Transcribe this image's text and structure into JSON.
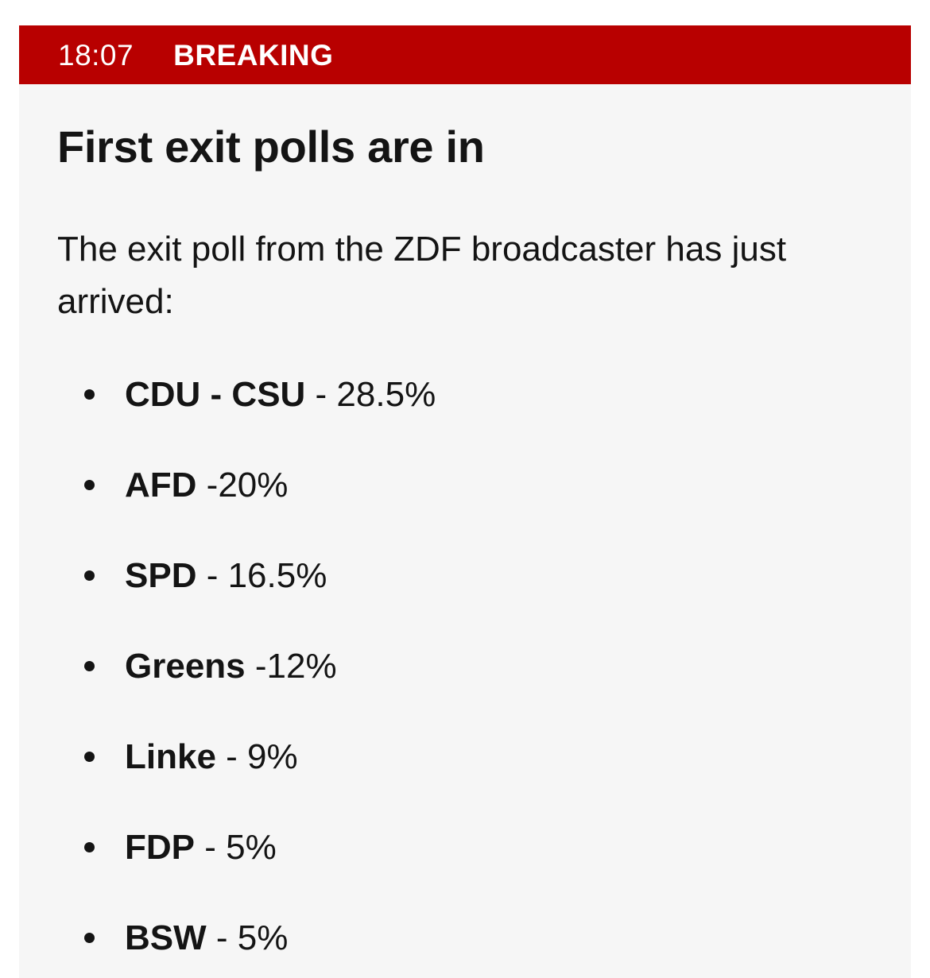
{
  "banner": {
    "time": "18:07",
    "label": "BREAKING",
    "color": "#b80000"
  },
  "post": {
    "headline": "First exit polls are in",
    "intro": "The exit poll from the ZDF broadcaster has just arrived:",
    "results": [
      {
        "party": "CDU - CSU",
        "value": " - 28.5%"
      },
      {
        "party": "AFD",
        "value": " -20%"
      },
      {
        "party": "SPD",
        "value": " - 16.5%"
      },
      {
        "party": "Greens",
        "value": " -12%"
      },
      {
        "party": "Linke",
        "value": " - 9%"
      },
      {
        "party": "FDP",
        "value": " - 5%"
      },
      {
        "party": "BSW",
        "value": " - 5%"
      }
    ]
  }
}
